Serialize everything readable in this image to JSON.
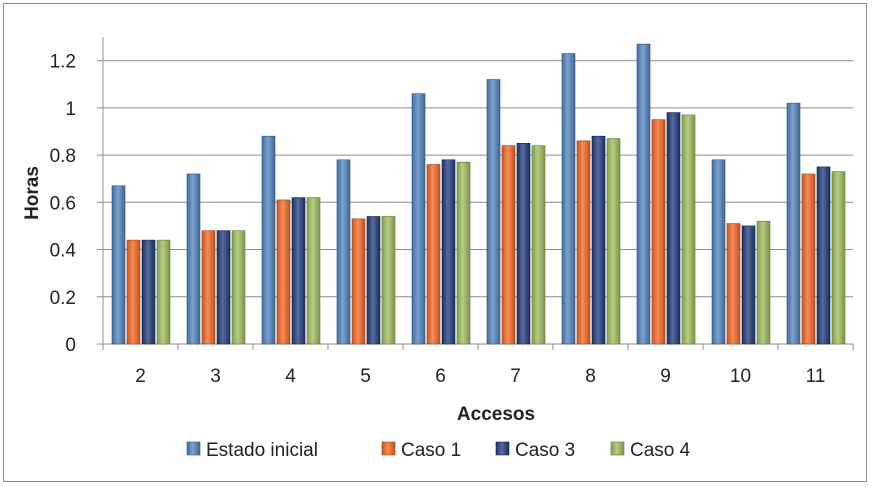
{
  "chart_data": {
    "type": "bar",
    "title": "",
    "xlabel": "Accesos",
    "ylabel": "Horas",
    "categories": [
      "2",
      "3",
      "4",
      "5",
      "6",
      "7",
      "8",
      "9",
      "10",
      "11"
    ],
    "ylim": [
      0,
      1.3
    ],
    "yticks": [
      0,
      0.2,
      0.4,
      0.6,
      0.8,
      1,
      1.2
    ],
    "ytick_labels": [
      "0",
      "0.2",
      "0.4",
      "0.6",
      "0.8",
      "1",
      "1.2"
    ],
    "grid": true,
    "legend_position": "bottom",
    "series": [
      {
        "name": "Estado inicial",
        "color": "#4f81bd",
        "values": [
          0.67,
          0.72,
          0.88,
          0.78,
          1.06,
          1.12,
          1.23,
          1.27,
          0.78,
          1.02
        ]
      },
      {
        "name": "Caso 1",
        "color": "#f26522",
        "values": [
          0.44,
          0.48,
          0.61,
          0.53,
          0.76,
          0.84,
          0.86,
          0.95,
          0.51,
          0.72
        ]
      },
      {
        "name": "Caso 3",
        "color": "#1f3a7a",
        "values": [
          0.44,
          0.48,
          0.62,
          0.54,
          0.78,
          0.85,
          0.88,
          0.98,
          0.5,
          0.75
        ]
      },
      {
        "name": "Caso 4",
        "color": "#9bbb59",
        "values": [
          0.44,
          0.48,
          0.62,
          0.54,
          0.77,
          0.84,
          0.87,
          0.97,
          0.52,
          0.73
        ]
      }
    ]
  }
}
